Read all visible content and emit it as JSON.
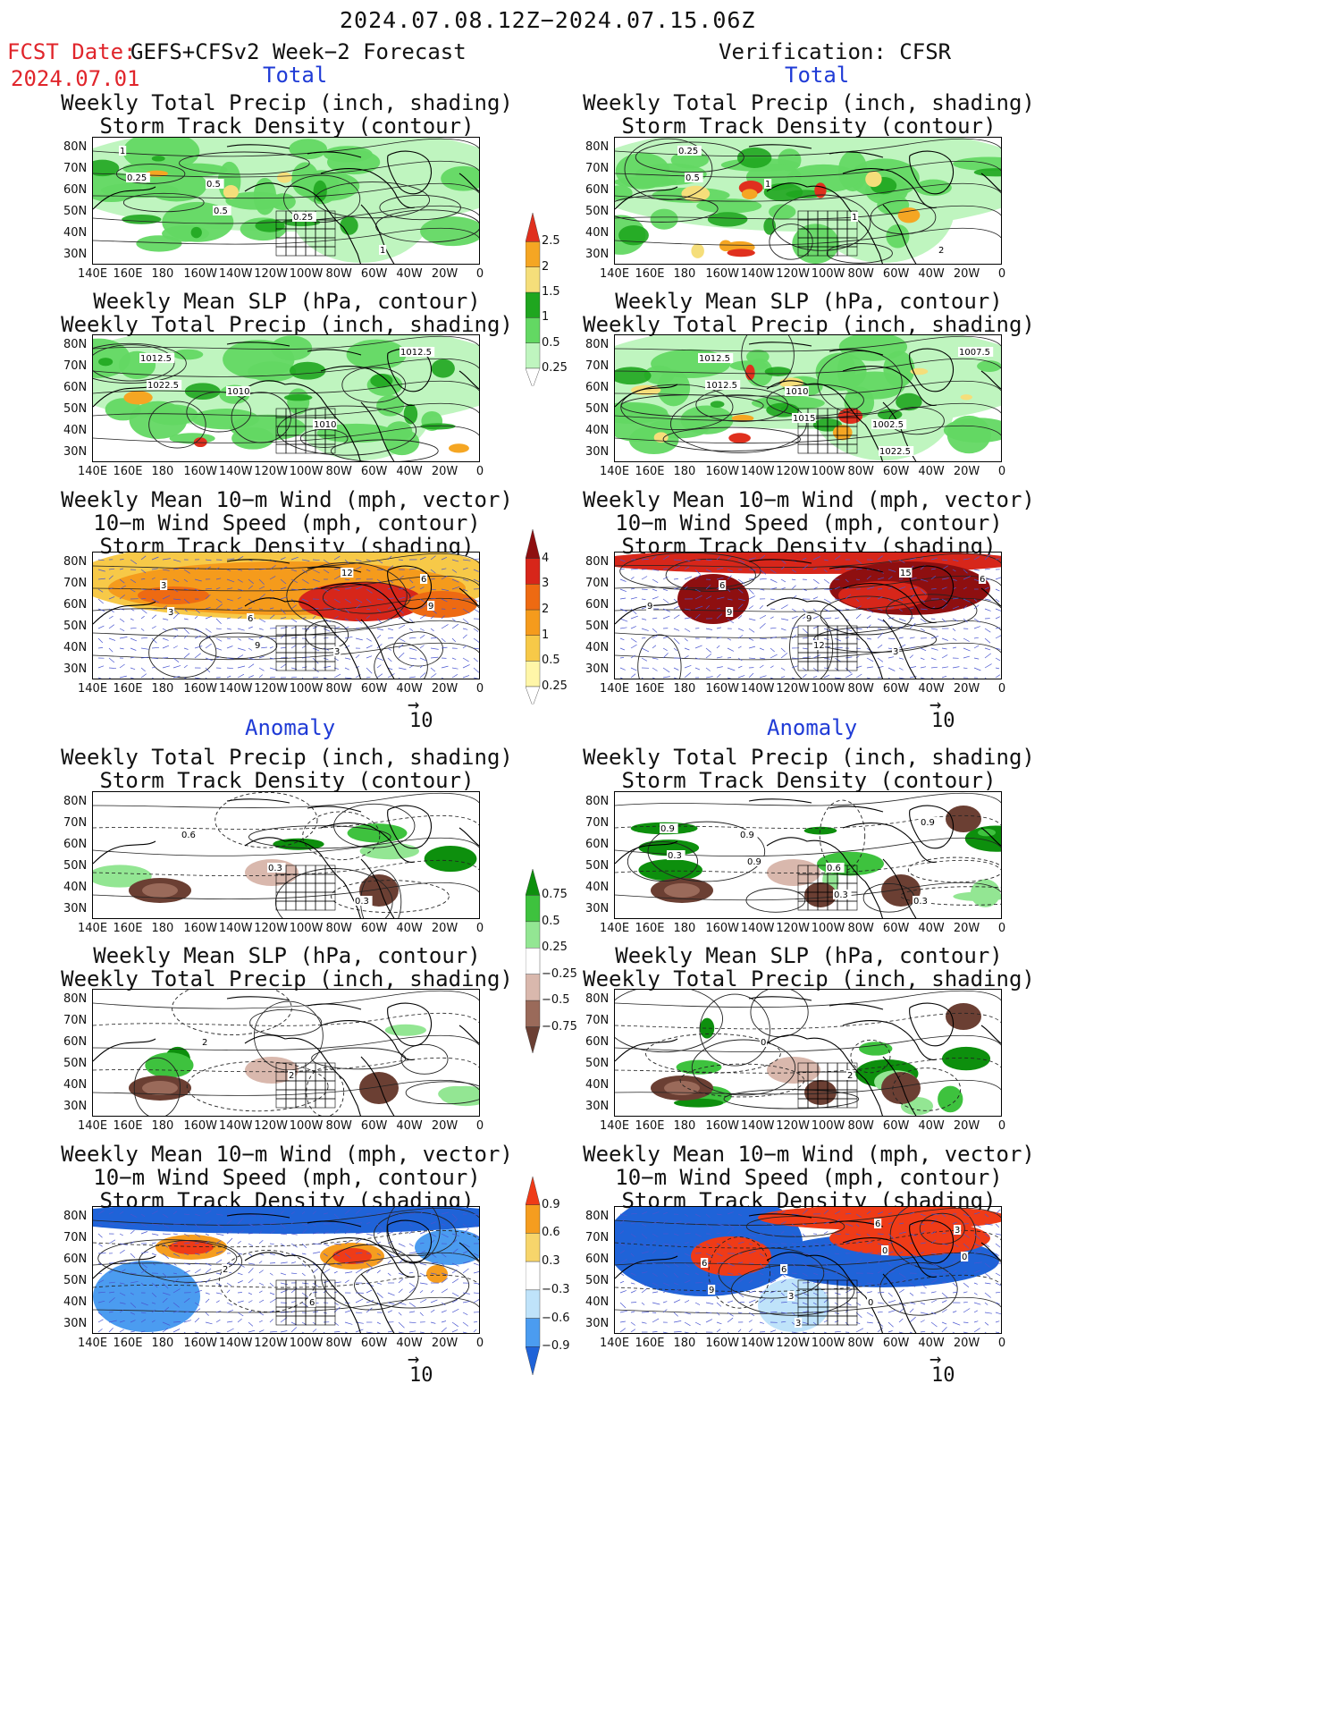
{
  "header": {
    "title": "2024.07.08.12Z−2024.07.15.06Z",
    "fcst_label": "FCST Date:",
    "fcst_model": "GEFS+CFSv2 Week−2 Forecast",
    "fcst_date": "2024.07.01",
    "verification": "Verification: CFSR"
  },
  "sections": {
    "total": "Total",
    "anomaly": "Anomaly"
  },
  "panel_titles": {
    "precip_storm": [
      "Weekly Total Precip (inch, shading)",
      "Storm Track Density (contour)"
    ],
    "slp_precip": [
      "Weekly Mean SLP (hPa, contour)",
      "Weekly Total Precip (inch, shading)"
    ],
    "wind": [
      "Weekly Mean 10−m Wind (mph, vector)",
      "10−m Wind Speed (mph, contour)",
      "Storm Track Density (shading)"
    ]
  },
  "axes": {
    "lat_labels": [
      "80N",
      "70N",
      "60N",
      "50N",
      "40N",
      "30N"
    ],
    "lon_labels": [
      "140E",
      "160E",
      "180",
      "160W",
      "140W",
      "120W",
      "100W",
      "80W",
      "60W",
      "40W",
      "20W",
      "0"
    ]
  },
  "vector_ref": "10",
  "colorbars": {
    "precip_total": [
      "0.25",
      "0.5",
      "1",
      "1.5",
      "2",
      "2.5"
    ],
    "storm_total": [
      "0.25",
      "0.5",
      "1",
      "2",
      "3",
      "4"
    ],
    "precip_anom": [
      "−0.75",
      "−0.5",
      "−0.25",
      "0.25",
      "0.5",
      "0.75"
    ],
    "storm_anom": [
      "−0.9",
      "−0.6",
      "−0.3",
      "0.3",
      "0.6",
      "0.9"
    ]
  },
  "contour_labels": {
    "f_precip_total": [
      "1",
      "0.5",
      "0.25",
      "1",
      "0.25",
      "0.5"
    ],
    "v_precip_total": [
      "0.25",
      "1",
      "1",
      "2",
      "0.5"
    ],
    "f_slp_total": [
      "1012.5",
      "1010",
      "1010",
      "1012.5",
      "1022.5"
    ],
    "v_slp_total": [
      "1012.5",
      "1010",
      "1002.5",
      "1007.5",
      "1012.5",
      "1015",
      "1022.5"
    ],
    "f_wind_total": [
      "3",
      "6",
      "3",
      "6",
      "3",
      "9",
      "12",
      "9"
    ],
    "v_wind_total": [
      "6",
      "9",
      "3",
      "6",
      "9",
      "12",
      "15",
      "9"
    ],
    "f_precip_anom": [
      "0.6",
      "0.3",
      "0.3"
    ],
    "v_precip_anom": [
      "0.9",
      "0.6",
      "0.3",
      "0.9",
      "0.9",
      "0.3",
      "0.9",
      "0.3"
    ],
    "f_slp_anom": [
      "2",
      "2"
    ],
    "v_slp_anom": [
      "0",
      "2"
    ],
    "f_wind_anom": [
      "2",
      "6"
    ],
    "v_wind_anom": [
      "6",
      "0",
      "3",
      "6",
      "3",
      "6",
      "0",
      "9",
      "3",
      "0"
    ]
  },
  "colors": {
    "header_red": "#e0252b",
    "section_blue": "#1f3bd6",
    "precip_scale": [
      "#bff5bf",
      "#63d863",
      "#1fa61f",
      "#f5de7a",
      "#f5a623",
      "#e0301e"
    ],
    "storm_scale": [
      "#fff6a8",
      "#f7c948",
      "#f59b1c",
      "#ee6a12",
      "#d7261a",
      "#8e0f10"
    ],
    "precip_anom_scale": [
      "#6b3f33",
      "#9a6a5a",
      "#d9b8ad",
      "#93e693",
      "#3ec23e",
      "#0d8f0d"
    ],
    "storm_anom_scale": [
      "#1f63d8",
      "#4b9cf0",
      "#bfe3fa",
      "#f7d56b",
      "#f59d1f",
      "#ef3b17"
    ]
  }
}
